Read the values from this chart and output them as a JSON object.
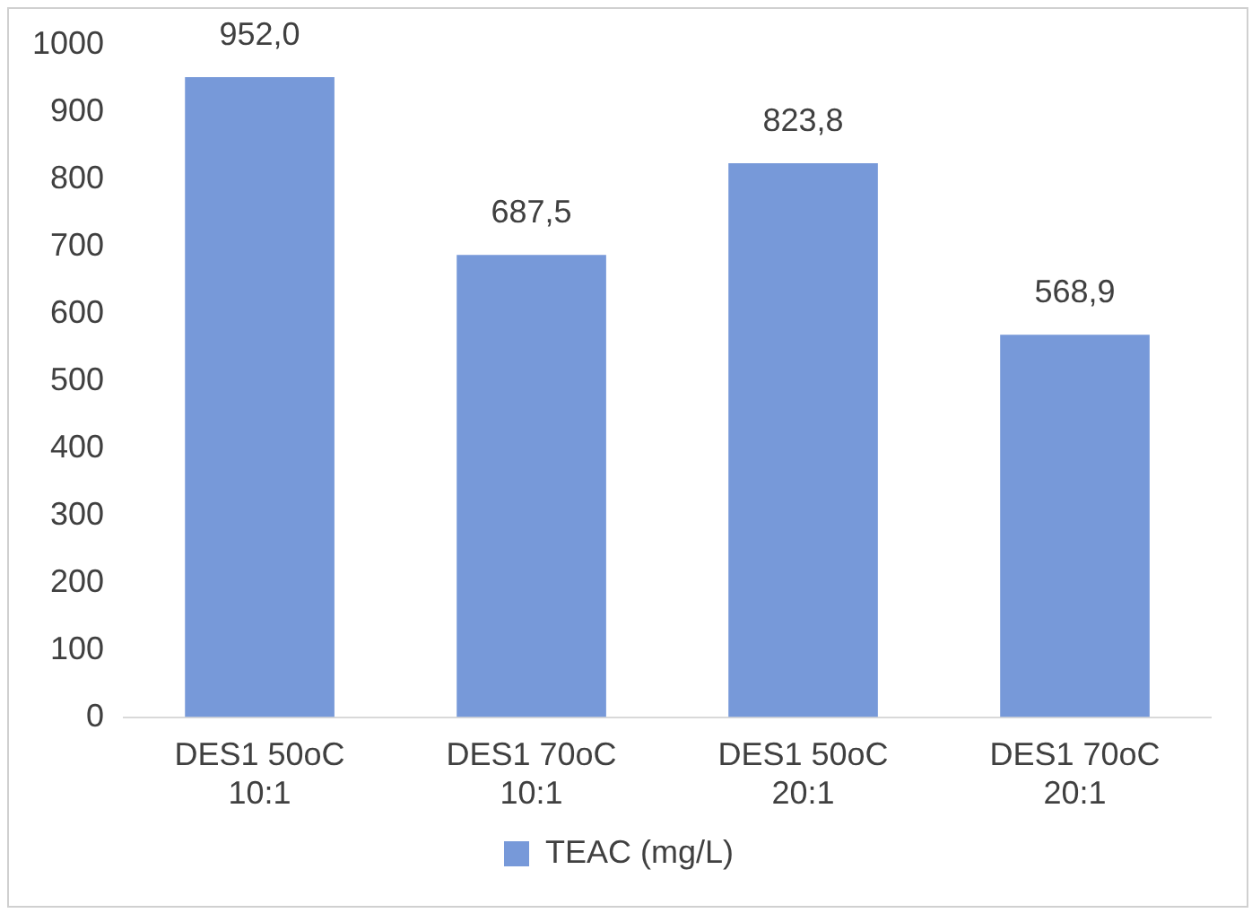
{
  "chart_data": {
    "type": "bar",
    "categories": [
      "DES1 50oC 10:1",
      "DES1 70oC 10:1",
      "DES1 50oC 20:1",
      "DES1 70oC 20:1"
    ],
    "series": [
      {
        "name": "TEAC (mg/L)",
        "color": "#7799d9",
        "values": [
          952.0,
          687.5,
          823.8,
          568.9
        ],
        "value_labels": [
          "952,0",
          "687,5",
          "823,8",
          "568,9"
        ]
      }
    ],
    "ylim": [
      0,
      1000
    ],
    "yticks": [
      0,
      100,
      200,
      300,
      400,
      500,
      600,
      700,
      800,
      900,
      1000
    ],
    "grid": false,
    "legend": "bottom"
  }
}
